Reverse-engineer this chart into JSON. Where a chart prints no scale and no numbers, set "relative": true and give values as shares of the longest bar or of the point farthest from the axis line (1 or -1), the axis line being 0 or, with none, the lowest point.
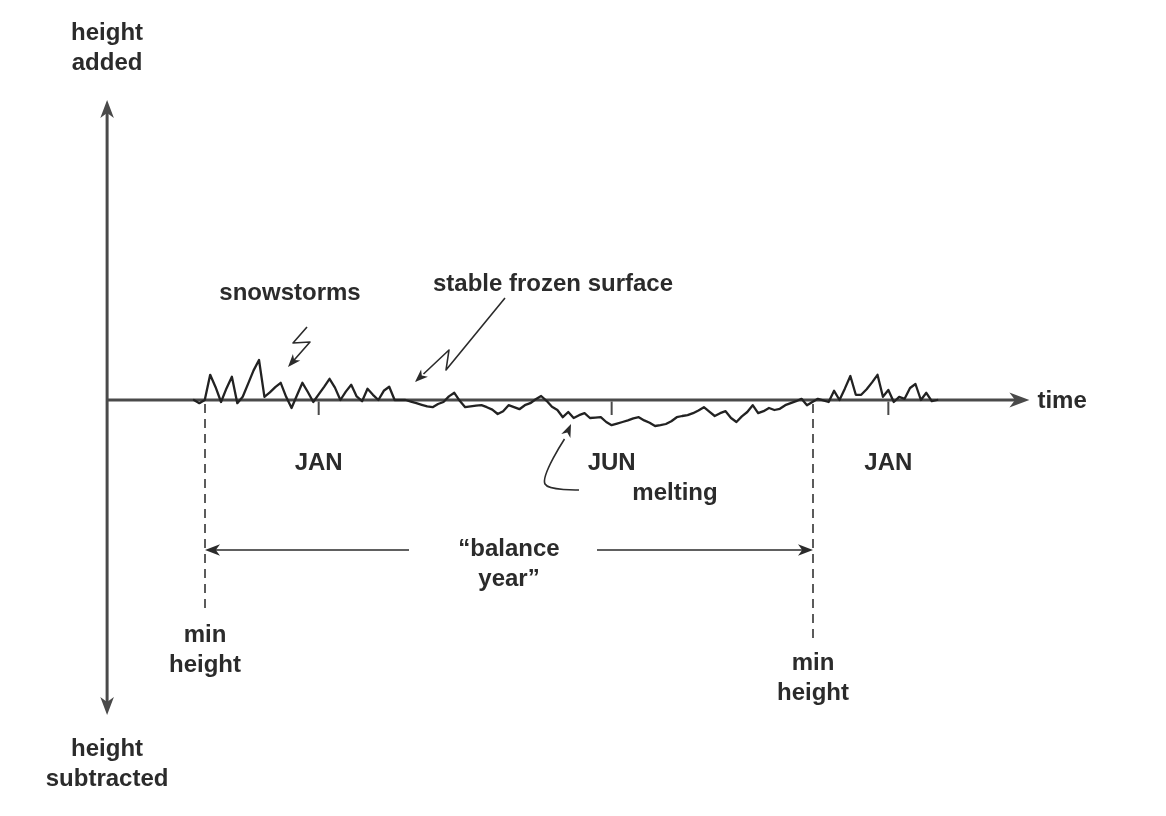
{
  "chart_data": {
    "type": "line",
    "relative": true,
    "xlabel": "time",
    "categories": [
      null,
      null,
      null,
      null,
      null,
      null,
      null,
      null,
      null,
      null,
      null,
      null,
      null,
      null,
      null,
      null,
      null,
      null,
      null,
      null,
      null,
      null,
      null,
      null,
      null,
      null,
      null,
      null,
      null,
      null,
      null,
      null,
      null,
      null,
      null,
      null,
      null,
      null,
      null,
      "JAN",
      null,
      null,
      null,
      null,
      null,
      null,
      null,
      null,
      null,
      null,
      null,
      null,
      null,
      null,
      null,
      null,
      null,
      null,
      null,
      null,
      null,
      null,
      null,
      null,
      null,
      null,
      null,
      null,
      null,
      null,
      null,
      null,
      null,
      null,
      null,
      null,
      null,
      null,
      null,
      null,
      null,
      null,
      null,
      null,
      null,
      null,
      null,
      null,
      null,
      null,
      null,
      null,
      null,
      "JUN",
      null,
      null,
      null,
      null,
      null,
      null,
      null,
      null,
      null,
      null,
      null,
      null,
      null,
      null,
      null,
      null,
      null,
      null,
      null,
      null,
      null,
      null,
      null,
      null,
      null,
      null,
      null,
      null,
      null,
      null,
      null,
      null,
      null,
      null,
      null,
      null,
      null,
      null,
      null,
      null,
      null,
      null,
      null,
      null,
      null,
      null,
      null,
      null,
      null,
      null,
      "JAN",
      null,
      null,
      null,
      null,
      null,
      null,
      null,
      null,
      null,
      null,
      null,
      null,
      null,
      null,
      null,
      null,
      null,
      null,
      null,
      null,
      null,
      null,
      null,
      null,
      null,
      null
    ],
    "series": [
      {
        "color": "#222222",
        "values": [
          null,
          null,
          null,
          null,
          null,
          null,
          null,
          null,
          null,
          null,
          null,
          null,
          null,
          null,
          null,
          null,
          0,
          -0.08,
          0,
          0.63,
          0.32,
          -0.05,
          0.29,
          0.58,
          -0.08,
          0.08,
          0.41,
          0.74,
          1,
          0.08,
          0.19,
          0.32,
          0.43,
          0.08,
          -0.2,
          0.12,
          0.43,
          0.2,
          -0.05,
          0.14,
          0.33,
          0.53,
          0.31,
          0,
          0.21,
          0.38,
          0.09,
          -0.03,
          0.28,
          0.13,
          0,
          0.23,
          0.33,
          0,
          0,
          0,
          -0.04,
          -0.08,
          -0.12,
          -0.16,
          -0.18,
          -0.1,
          -0.05,
          0.09,
          0.18,
          -0.02,
          -0.18,
          -0.16,
          -0.14,
          -0.13,
          -0.18,
          -0.24,
          -0.35,
          -0.28,
          -0.13,
          -0.18,
          -0.23,
          -0.13,
          -0.08,
          0.02,
          0.1,
          -0.02,
          -0.17,
          -0.25,
          -0.43,
          -0.3,
          -0.45,
          -0.38,
          -0.33,
          -0.45,
          -0.44,
          -0.43,
          -0.55,
          -0.63,
          -0.59,
          -0.55,
          -0.51,
          -0.46,
          -0.43,
          -0.51,
          -0.57,
          -0.65,
          -0.63,
          -0.6,
          -0.53,
          -0.43,
          -0.4,
          -0.38,
          -0.33,
          -0.26,
          -0.18,
          -0.29,
          -0.4,
          -0.33,
          -0.28,
          -0.45,
          -0.55,
          -0.41,
          -0.3,
          -0.13,
          -0.33,
          -0.28,
          -0.2,
          -0.25,
          -0.22,
          -0.13,
          -0.08,
          -0.03,
          0.03,
          -0.13,
          -0.05,
          0.03,
          -0.01,
          -0.05,
          0.23,
          0,
          0.29,
          0.6,
          0.13,
          0.13,
          0.27,
          0.44,
          0.63,
          0.08,
          0.25,
          -0.05,
          0.08,
          0.03,
          0.3,
          0.4,
          0,
          0.18,
          -0.03,
          0,
          null,
          null,
          null,
          null,
          null,
          null,
          null,
          null,
          null,
          null,
          null,
          null,
          null,
          null,
          null,
          null,
          null
        ]
      }
    ],
    "annotations": [
      "height added",
      "snowstorms",
      "stable frozen surface",
      "melting",
      "“balance year”",
      "min height",
      "min height",
      "height subtracted"
    ]
  }
}
